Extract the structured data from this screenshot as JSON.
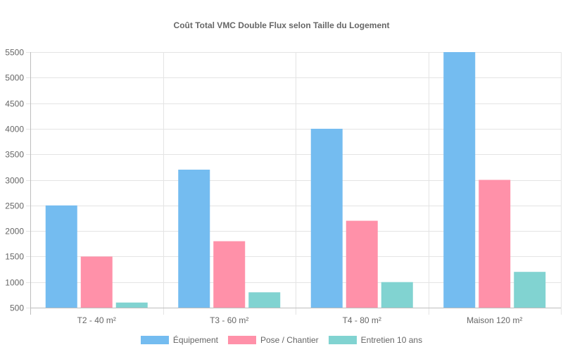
{
  "chart_data": {
    "type": "bar",
    "title": "Coût Total VMC Double Flux selon Taille du Logement",
    "xlabel": "",
    "ylabel": "",
    "categories": [
      "T2 - 40 m²",
      "T3 - 60 m²",
      "T4 - 80 m²",
      "Maison 120 m²"
    ],
    "series": [
      {
        "name": "Équipement",
        "color": "#36a2eb",
        "values": [
          2500,
          3200,
          4000,
          5500
        ]
      },
      {
        "name": "Pose / Chantier",
        "color": "#ff6384",
        "values": [
          1500,
          1800,
          2200,
          3000
        ]
      },
      {
        "name": "Entretien 10 ans",
        "color": "#4bc0c0",
        "values": [
          600,
          800,
          1000,
          1200
        ]
      }
    ],
    "ylim": [
      500,
      5500
    ],
    "yticks": [
      500,
      1000,
      1500,
      2000,
      2500,
      3000,
      3500,
      4000,
      4500,
      5000,
      5500
    ],
    "grid": true,
    "legend_position": "bottom"
  },
  "colors": {
    "equipement": "#74bcf0",
    "pose": "#ff91a9",
    "entretien": "#81d3d1"
  }
}
